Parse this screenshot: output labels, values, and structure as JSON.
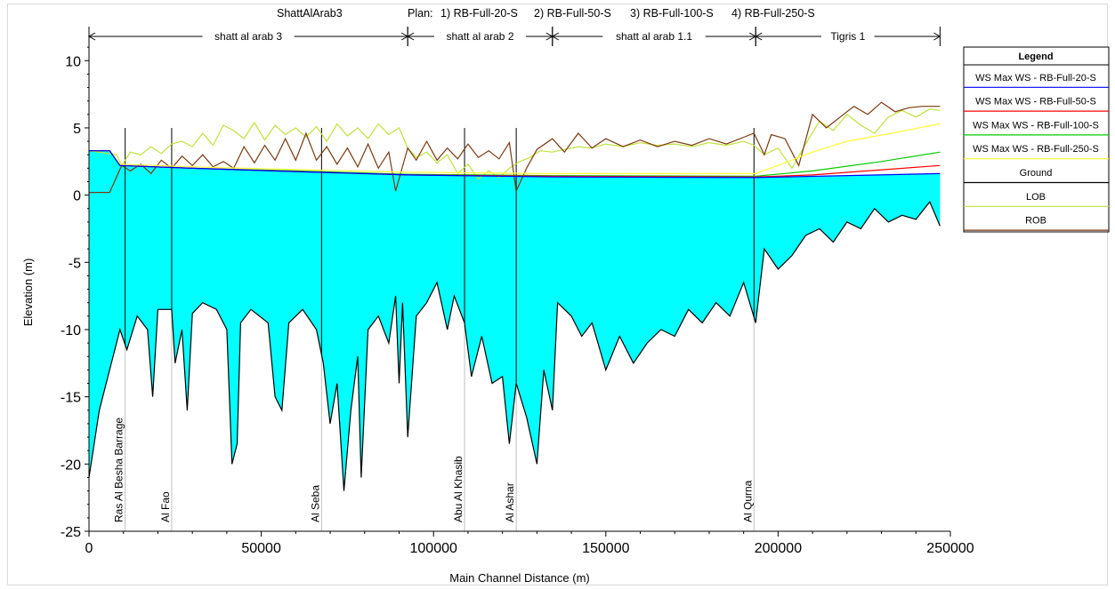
{
  "chart_data": {
    "type": "line",
    "plan_header": {
      "geometry_name": "ShattAlArab3",
      "plan_label": "Plan:",
      "plans": [
        "1) RB-Full-20-S",
        "2) RB-Full-50-S",
        "3) RB-Full-100-S",
        "4) RB-Full-250-S"
      ]
    },
    "reaches": [
      {
        "name": "shatt al arab 3",
        "start": 0,
        "end": 92500
      },
      {
        "name": "shatt al arab 2",
        "start": 92500,
        "end": 134500
      },
      {
        "name": "shatt al arab 1.1",
        "start": 134500,
        "end": 193500
      },
      {
        "name": "Tigris 1",
        "start": 193500,
        "end": 247000
      }
    ],
    "xlabel": "Main Channel Distance (m)",
    "ylabel": "Elevation (m)",
    "xlim": [
      0,
      250000
    ],
    "ylim": [
      -25,
      12
    ],
    "x_ticks": [
      "0",
      "50000",
      "100000",
      "150000",
      "200000",
      "250000"
    ],
    "y_ticks": [
      "10",
      "5",
      "0",
      "-5",
      "-10",
      "-15",
      "-20",
      "-25"
    ],
    "bridges": [
      {
        "name": "Ras Al Besha Barrage",
        "x": 10500
      },
      {
        "name": "Al Fao",
        "x": 24000
      },
      {
        "name": "Al Seba",
        "x": 67500
      },
      {
        "name": "Abu Al Khasib",
        "x": 109000
      },
      {
        "name": "Al Ashar",
        "x": 124000
      },
      {
        "name": "Al Qurna",
        "x": 193000
      }
    ],
    "legend": {
      "title": "Legend",
      "entries": [
        {
          "label": "WS  Max WS - RB-Full-20-S",
          "color": "#0000ff"
        },
        {
          "label": "WS  Max WS - RB-Full-50-S",
          "color": "#ff0000"
        },
        {
          "label": "WS  Max WS - RB-Full-100-S",
          "color": "#00cc00"
        },
        {
          "label": "WS  Max WS - RB-Full-250-S",
          "color": "#ffff33"
        },
        {
          "label": "Ground",
          "color": "#000000"
        },
        {
          "label": "LOB",
          "color": "#bfe33a"
        },
        {
          "label": "ROB",
          "color": "#7a3a10"
        }
      ]
    },
    "colors": {
      "water_fill": "#00ffff",
      "bridge_line": "#c0c0c0"
    },
    "series": [
      {
        "name": "WS  Max WS - RB-Full-20-S",
        "points": [
          [
            0,
            3.3
          ],
          [
            6000,
            3.3
          ],
          [
            9000,
            2.2
          ],
          [
            30000,
            2.0
          ],
          [
            60000,
            1.75
          ],
          [
            92500,
            1.5
          ],
          [
            134500,
            1.35
          ],
          [
            193500,
            1.3
          ],
          [
            247000,
            1.6
          ]
        ]
      },
      {
        "name": "WS  Max WS - RB-Full-50-S",
        "points": [
          [
            0,
            3.3
          ],
          [
            6000,
            3.3
          ],
          [
            9000,
            2.2
          ],
          [
            30000,
            2.0
          ],
          [
            60000,
            1.75
          ],
          [
            92500,
            1.5
          ],
          [
            134500,
            1.4
          ],
          [
            193500,
            1.35
          ],
          [
            210000,
            1.5
          ],
          [
            247000,
            2.2
          ]
        ]
      },
      {
        "name": "WS  Max WS - RB-Full-100-S",
        "points": [
          [
            0,
            3.3
          ],
          [
            6000,
            3.3
          ],
          [
            9000,
            2.2
          ],
          [
            30000,
            2.0
          ],
          [
            60000,
            1.8
          ],
          [
            92500,
            1.55
          ],
          [
            134500,
            1.45
          ],
          [
            193500,
            1.4
          ],
          [
            210000,
            1.8
          ],
          [
            230000,
            2.5
          ],
          [
            247000,
            3.2
          ]
        ]
      },
      {
        "name": "WS  Max WS - RB-Full-250-S",
        "points": [
          [
            0,
            3.3
          ],
          [
            6000,
            3.3
          ],
          [
            9000,
            2.3
          ],
          [
            30000,
            2.1
          ],
          [
            60000,
            1.9
          ],
          [
            92500,
            1.7
          ],
          [
            134500,
            1.6
          ],
          [
            193500,
            1.6
          ],
          [
            200000,
            2.2
          ],
          [
            210000,
            3.2
          ],
          [
            220000,
            4.0
          ],
          [
            235000,
            4.7
          ],
          [
            247000,
            5.3
          ]
        ]
      },
      {
        "name": "Ground",
        "points": [
          [
            0,
            -21
          ],
          [
            3000,
            -16
          ],
          [
            6000,
            -13
          ],
          [
            9000,
            -10
          ],
          [
            11000,
            -11.5
          ],
          [
            14000,
            -9
          ],
          [
            17000,
            -10
          ],
          [
            18500,
            -15
          ],
          [
            20000,
            -8.5
          ],
          [
            24000,
            -8.5
          ],
          [
            25000,
            -12.5
          ],
          [
            27000,
            -10
          ],
          [
            28500,
            -16
          ],
          [
            30000,
            -8.8
          ],
          [
            33000,
            -8
          ],
          [
            37000,
            -8.5
          ],
          [
            40000,
            -10
          ],
          [
            41500,
            -20
          ],
          [
            43000,
            -18.5
          ],
          [
            44000,
            -9.5
          ],
          [
            47000,
            -8.5
          ],
          [
            52000,
            -9.5
          ],
          [
            54000,
            -15
          ],
          [
            56000,
            -16
          ],
          [
            58000,
            -9.5
          ],
          [
            62000,
            -8.5
          ],
          [
            66000,
            -10
          ],
          [
            68000,
            -12.5
          ],
          [
            70000,
            -17
          ],
          [
            72000,
            -14
          ],
          [
            74000,
            -22
          ],
          [
            76000,
            -16
          ],
          [
            78000,
            -12
          ],
          [
            79000,
            -21
          ],
          [
            81000,
            -10
          ],
          [
            84000,
            -9
          ],
          [
            87000,
            -11
          ],
          [
            89000,
            -7.5
          ],
          [
            90000,
            -14
          ],
          [
            91000,
            -8
          ],
          [
            92500,
            -18
          ],
          [
            95000,
            -9
          ],
          [
            98000,
            -8
          ],
          [
            101000,
            -6.5
          ],
          [
            104000,
            -10
          ],
          [
            106000,
            -7.5
          ],
          [
            109000,
            -9.5
          ],
          [
            111000,
            -13.5
          ],
          [
            114000,
            -10.5
          ],
          [
            117000,
            -14
          ],
          [
            120000,
            -13.5
          ],
          [
            122000,
            -18.5
          ],
          [
            124000,
            -14
          ],
          [
            127000,
            -16.5
          ],
          [
            130000,
            -20
          ],
          [
            132000,
            -13
          ],
          [
            134500,
            -16
          ],
          [
            136000,
            -8
          ],
          [
            140000,
            -9
          ],
          [
            143000,
            -10.5
          ],
          [
            146000,
            -9.5
          ],
          [
            150000,
            -13
          ],
          [
            154000,
            -10.5
          ],
          [
            158000,
            -12.5
          ],
          [
            162000,
            -11
          ],
          [
            166000,
            -10
          ],
          [
            170000,
            -10.5
          ],
          [
            174000,
            -8.5
          ],
          [
            178000,
            -9.5
          ],
          [
            182000,
            -8
          ],
          [
            186000,
            -9
          ],
          [
            190000,
            -6.5
          ],
          [
            193500,
            -9.5
          ],
          [
            196000,
            -4
          ],
          [
            200000,
            -5.5
          ],
          [
            204000,
            -4.5
          ],
          [
            208000,
            -3
          ],
          [
            212000,
            -2.5
          ],
          [
            216000,
            -3.5
          ],
          [
            220000,
            -2
          ],
          [
            224000,
            -2.5
          ],
          [
            228000,
            -1
          ],
          [
            232000,
            -2
          ],
          [
            236000,
            -1.5
          ],
          [
            240000,
            -1.8
          ],
          [
            244000,
            -0.5
          ],
          [
            247000,
            -2.3
          ]
        ]
      },
      {
        "name": "LOB",
        "points": [
          [
            0,
            3.3
          ],
          [
            8000,
            3.0
          ],
          [
            9500,
            2.2
          ],
          [
            12000,
            3.2
          ],
          [
            15000,
            3.0
          ],
          [
            18000,
            3.6
          ],
          [
            21000,
            3.1
          ],
          [
            24000,
            3.8
          ],
          [
            27000,
            4.0
          ],
          [
            30000,
            3.6
          ],
          [
            33000,
            4.6
          ],
          [
            36000,
            3.7
          ],
          [
            39000,
            5.2
          ],
          [
            42000,
            4.8
          ],
          [
            45000,
            4.2
          ],
          [
            48000,
            5.4
          ],
          [
            51000,
            4.1
          ],
          [
            54000,
            5.2
          ],
          [
            57000,
            4.5
          ],
          [
            60000,
            5.0
          ],
          [
            63000,
            4.3
          ],
          [
            66000,
            5.1
          ],
          [
            69000,
            4.0
          ],
          [
            72000,
            5.3
          ],
          [
            75000,
            4.4
          ],
          [
            78000,
            5.0
          ],
          [
            81000,
            4.2
          ],
          [
            84000,
            5.3
          ],
          [
            87000,
            4.5
          ],
          [
            90000,
            5.0
          ],
          [
            92500,
            3.5
          ],
          [
            95000,
            2.8
          ],
          [
            98000,
            3.2
          ],
          [
            101000,
            2.4
          ],
          [
            104000,
            3.0
          ],
          [
            107000,
            1.6
          ],
          [
            110000,
            2.3
          ],
          [
            113000,
            1.2
          ],
          [
            116000,
            1.8
          ],
          [
            119000,
            1.3
          ],
          [
            122000,
            2.0
          ],
          [
            125000,
            2.5
          ],
          [
            128000,
            2.8
          ],
          [
            131000,
            3.3
          ],
          [
            134500,
            3.2
          ],
          [
            138000,
            3.4
          ],
          [
            142000,
            3.6
          ],
          [
            146000,
            3.5
          ],
          [
            150000,
            3.8
          ],
          [
            155000,
            3.6
          ],
          [
            160000,
            3.9
          ],
          [
            165000,
            3.7
          ],
          [
            170000,
            3.8
          ],
          [
            175000,
            3.6
          ],
          [
            180000,
            3.9
          ],
          [
            185000,
            3.7
          ],
          [
            190000,
            4.0
          ],
          [
            193000,
            3.7
          ],
          [
            196000,
            3.0
          ],
          [
            200000,
            3.5
          ],
          [
            204000,
            2.0
          ],
          [
            208000,
            3.8
          ],
          [
            212000,
            5.5
          ],
          [
            216000,
            4.8
          ],
          [
            220000,
            6.0
          ],
          [
            224000,
            5.2
          ],
          [
            228000,
            4.6
          ],
          [
            232000,
            5.8
          ],
          [
            236000,
            6.3
          ],
          [
            240000,
            5.8
          ],
          [
            244000,
            6.4
          ],
          [
            247000,
            6.3
          ]
        ]
      },
      {
        "name": "ROB",
        "points": [
          [
            0,
            0.2
          ],
          [
            6000,
            0.2
          ],
          [
            9500,
            2.2
          ],
          [
            12000,
            1.8
          ],
          [
            15000,
            2.3
          ],
          [
            18000,
            1.6
          ],
          [
            21000,
            2.6
          ],
          [
            24000,
            2.0
          ],
          [
            27000,
            2.9
          ],
          [
            30000,
            2.2
          ],
          [
            33000,
            3.0
          ],
          [
            36000,
            2.1
          ],
          [
            39000,
            2.5
          ],
          [
            42000,
            2.0
          ],
          [
            45000,
            3.6
          ],
          [
            48000,
            2.4
          ],
          [
            51000,
            3.7
          ],
          [
            54000,
            2.6
          ],
          [
            57000,
            4.2
          ],
          [
            60000,
            2.6
          ],
          [
            63000,
            4.6
          ],
          [
            66000,
            2.6
          ],
          [
            69000,
            3.6
          ],
          [
            72000,
            2.3
          ],
          [
            75000,
            3.5
          ],
          [
            78000,
            2.1
          ],
          [
            81000,
            3.8
          ],
          [
            84000,
            2.0
          ],
          [
            87000,
            3.2
          ],
          [
            89000,
            0.3
          ],
          [
            92500,
            3.5
          ],
          [
            95000,
            2.6
          ],
          [
            98000,
            4.0
          ],
          [
            101000,
            2.6
          ],
          [
            104000,
            3.5
          ],
          [
            107000,
            2.7
          ],
          [
            110000,
            3.8
          ],
          [
            113000,
            2.8
          ],
          [
            116000,
            3.3
          ],
          [
            119000,
            2.7
          ],
          [
            122000,
            3.9
          ],
          [
            124000,
            0.3
          ],
          [
            127000,
            2.0
          ],
          [
            130000,
            3.4
          ],
          [
            134500,
            4.2
          ],
          [
            138000,
            3.2
          ],
          [
            142000,
            4.6
          ],
          [
            146000,
            3.5
          ],
          [
            150000,
            4.2
          ],
          [
            155000,
            3.6
          ],
          [
            160000,
            4.1
          ],
          [
            165000,
            3.6
          ],
          [
            170000,
            4.0
          ],
          [
            175000,
            3.7
          ],
          [
            180000,
            4.2
          ],
          [
            185000,
            3.8
          ],
          [
            190000,
            4.3
          ],
          [
            193000,
            4.6
          ],
          [
            196000,
            3.0
          ],
          [
            198000,
            4.5
          ],
          [
            202000,
            4.2
          ],
          [
            206000,
            2.2
          ],
          [
            210000,
            6.0
          ],
          [
            214000,
            5.0
          ],
          [
            218000,
            5.8
          ],
          [
            222000,
            6.6
          ],
          [
            226000,
            6.0
          ],
          [
            230000,
            6.9
          ],
          [
            234000,
            6.2
          ],
          [
            238000,
            6.5
          ],
          [
            242000,
            6.6
          ],
          [
            247000,
            6.6
          ]
        ]
      }
    ]
  }
}
